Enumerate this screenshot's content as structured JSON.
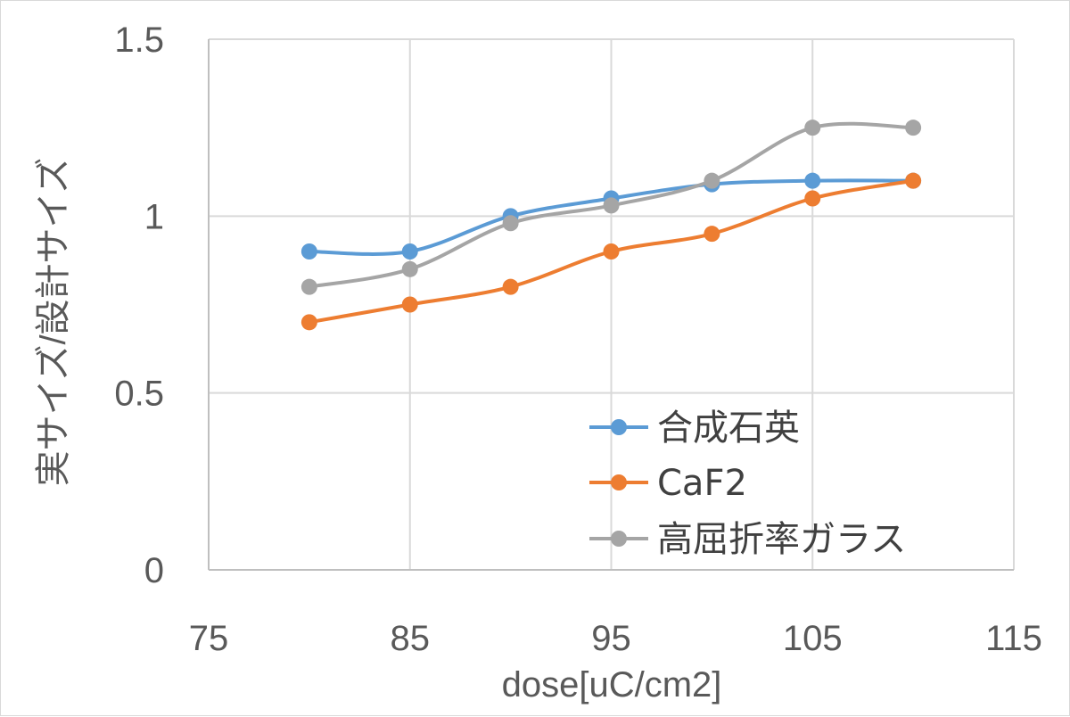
{
  "chart_data": {
    "type": "line",
    "xlabel": "dose[uC/cm2]",
    "ylabel": "実サイズ/設計サイズ",
    "xlim": [
      75,
      115
    ],
    "ylim": [
      0,
      1.5
    ],
    "x_ticks": [
      "75",
      "85",
      "95",
      "105",
      "115"
    ],
    "y_ticks": [
      "0",
      "0.5",
      "1",
      "1.5"
    ],
    "grid": true,
    "legend_position": "bottom-right",
    "x": [
      80,
      85,
      90,
      95,
      100,
      105,
      110
    ],
    "series": [
      {
        "name": "合成石英",
        "color": "#5b9bd5",
        "values": [
          0.9,
          0.9,
          1.0,
          1.05,
          1.09,
          1.1,
          1.1
        ]
      },
      {
        "name": "CaF2",
        "color": "#ed7d31",
        "values": [
          0.7,
          0.75,
          0.8,
          0.9,
          0.95,
          1.05,
          1.1
        ]
      },
      {
        "name": "高屈折率ガラス",
        "color": "#a5a5a5",
        "values": [
          0.8,
          0.85,
          0.98,
          1.03,
          1.1,
          1.25,
          1.25
        ]
      }
    ]
  }
}
